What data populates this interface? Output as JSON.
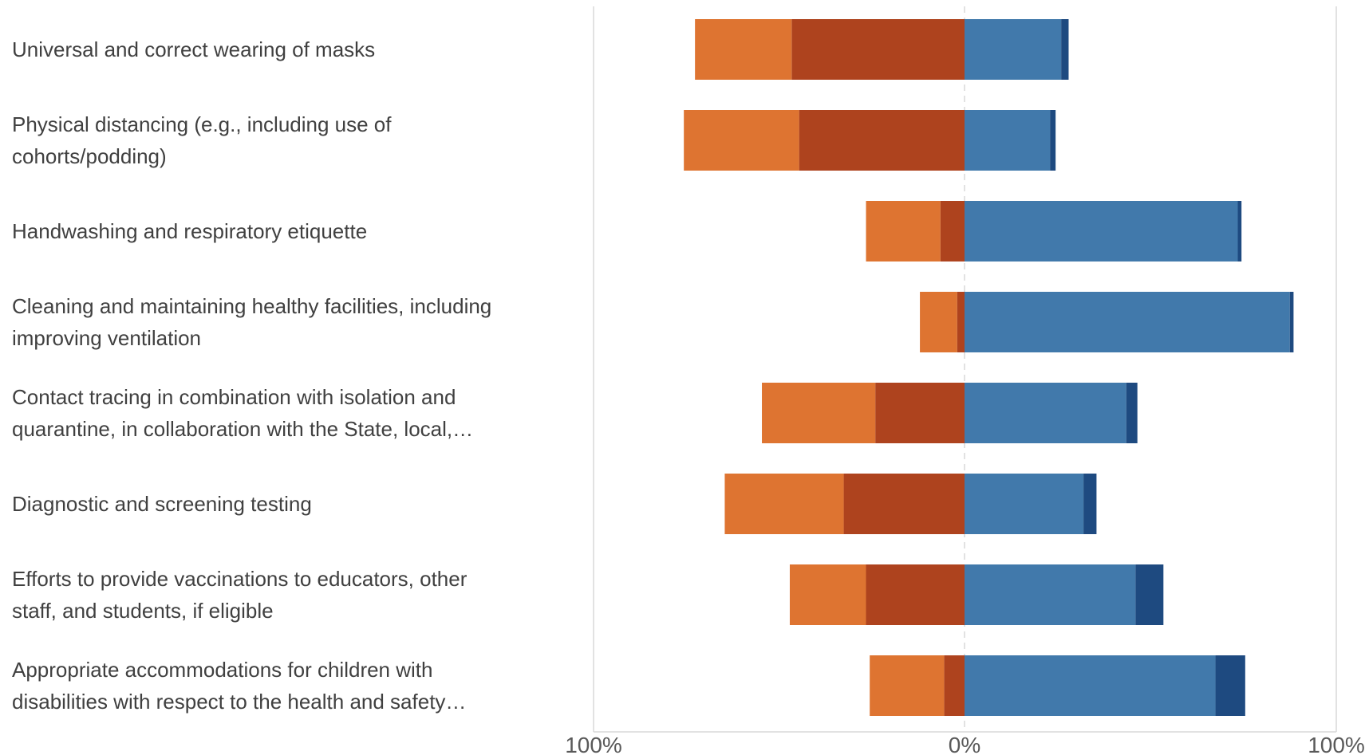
{
  "chart_data": {
    "type": "bar",
    "orientation": "horizontal",
    "stacked": "diverging",
    "categories": [
      [
        "Universal and correct wearing of masks"
      ],
      [
        "Physical distancing (e.g., including use of",
        "cohorts/podding)"
      ],
      [
        "Handwashing and respiratory etiquette"
      ],
      [
        "Cleaning and maintaining healthy facilities, including",
        "improving ventilation"
      ],
      [
        "Contact tracing in combination with isolation and",
        "quarantine, in collaboration with the State, local,…"
      ],
      [
        "Diagnostic and screening testing"
      ],
      [
        "Efforts to provide vaccinations to educators, other",
        "staff, and students, if eligible"
      ],
      [
        "Appropriate accommodations for children with",
        "disabilities with respect to the health and safety…"
      ]
    ],
    "series": [
      {
        "side": "negative",
        "color": "#ae431e",
        "values": [
          46.5,
          44.5,
          6.5,
          2,
          24,
          32.5,
          26.5,
          5.5
        ]
      },
      {
        "side": "negative",
        "color": "#de7431",
        "values": [
          26,
          31,
          20,
          10,
          30.5,
          32,
          20.5,
          20
        ]
      },
      {
        "side": "positive",
        "color": "#4179ab",
        "values": [
          26,
          23,
          73.5,
          87.5,
          43.5,
          32,
          46,
          67.5
        ]
      },
      {
        "side": "positive",
        "color": "#1e4a80",
        "values": [
          2,
          1.5,
          1,
          1,
          3,
          3.5,
          7.5,
          8
        ]
      }
    ],
    "xlim": [
      -100,
      100
    ],
    "xticks": [
      "100%",
      "0%",
      "100%"
    ],
    "grid": "outer verticals and dashed zero line",
    "legend": "none",
    "title": "",
    "xlabel": "",
    "ylabel": ""
  }
}
